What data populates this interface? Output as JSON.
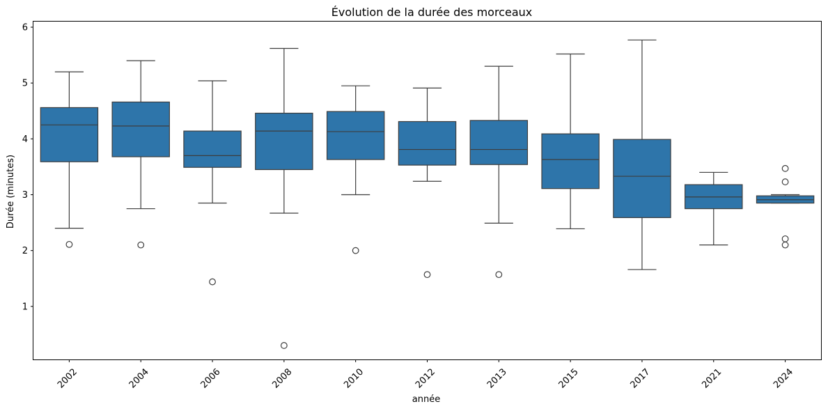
{
  "chart_data": {
    "type": "box",
    "title": "Évolution de la durée des morceaux",
    "xlabel": "année",
    "ylabel": "Durée (minutes)",
    "ylim": [
      0.05,
      6.1
    ],
    "yticks": [
      1,
      2,
      3,
      4,
      5,
      6
    ],
    "grid": false,
    "color": "#2e75aa",
    "categories": [
      "2002",
      "2004",
      "2006",
      "2008",
      "2010",
      "2012",
      "2013",
      "2015",
      "2017",
      "2021",
      "2024"
    ],
    "boxes": [
      {
        "category": "2002",
        "whislo": 2.4,
        "q1": 3.59,
        "med": 4.25,
        "q3": 4.56,
        "whishi": 5.2,
        "fliers": [
          2.11
        ]
      },
      {
        "category": "2004",
        "whislo": 2.75,
        "q1": 3.68,
        "med": 4.23,
        "q3": 4.66,
        "whishi": 5.4,
        "fliers": [
          2.1
        ]
      },
      {
        "category": "2006",
        "whislo": 2.85,
        "q1": 3.49,
        "med": 3.7,
        "q3": 4.14,
        "whishi": 5.04,
        "fliers": [
          1.44
        ]
      },
      {
        "category": "2008",
        "whislo": 2.67,
        "q1": 3.45,
        "med": 4.14,
        "q3": 4.46,
        "whishi": 5.62,
        "fliers": [
          0.3
        ]
      },
      {
        "category": "2010",
        "whislo": 3.0,
        "q1": 3.63,
        "med": 4.13,
        "q3": 4.49,
        "whishi": 4.95,
        "fliers": [
          2.0
        ]
      },
      {
        "category": "2012",
        "whislo": 3.24,
        "q1": 3.53,
        "med": 3.81,
        "q3": 4.31,
        "whishi": 4.91,
        "fliers": [
          1.57
        ]
      },
      {
        "category": "2013",
        "whislo": 2.49,
        "q1": 3.54,
        "med": 3.81,
        "q3": 4.33,
        "whishi": 5.3,
        "fliers": [
          1.57
        ]
      },
      {
        "category": "2015",
        "whislo": 2.39,
        "q1": 3.11,
        "med": 3.63,
        "q3": 4.09,
        "whishi": 5.52,
        "fliers": []
      },
      {
        "category": "2017",
        "whislo": 1.66,
        "q1": 2.59,
        "med": 3.33,
        "q3": 3.99,
        "whishi": 5.77,
        "fliers": []
      },
      {
        "category": "2021",
        "whislo": 2.1,
        "q1": 2.75,
        "med": 2.96,
        "q3": 3.18,
        "whishi": 3.4,
        "fliers": []
      },
      {
        "category": "2024",
        "whislo": 2.85,
        "q1": 2.85,
        "med": 2.91,
        "q3": 2.98,
        "whishi": 3.0,
        "fliers": [
          3.47,
          3.23,
          2.21,
          2.1
        ]
      }
    ]
  }
}
